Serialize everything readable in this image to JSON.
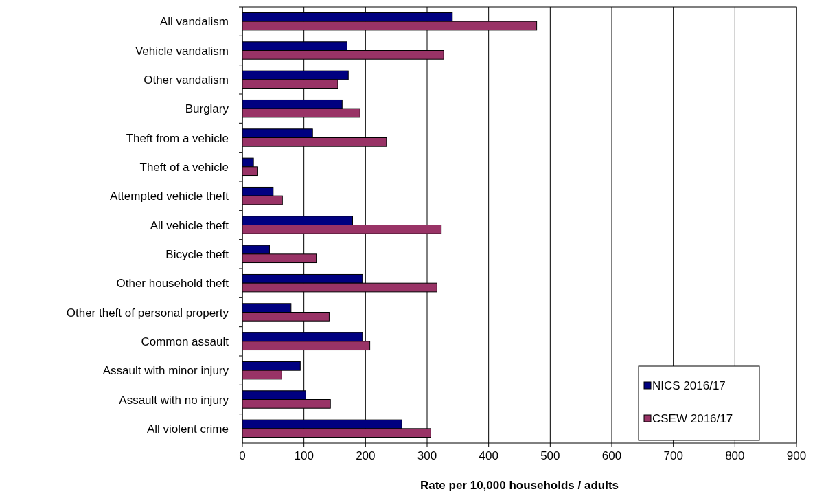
{
  "chart_data": {
    "type": "bar",
    "orientation": "horizontal",
    "xlabel": "Rate per 10,000 households / adults",
    "categories": [
      "All vandalism",
      "Vehicle vandalism",
      "Other vandalism",
      "Burglary",
      "Theft from a vehicle",
      "Theft of a vehicle",
      "Attempted vehicle theft",
      "All vehicle theft",
      "Bicycle theft",
      "Other household theft",
      "Other theft of personal property",
      "Common assault",
      "Assault with minor injury",
      "Assault with no injury",
      "All violent crime"
    ],
    "series": [
      {
        "name": "NICS 2016/17",
        "color": "#000080",
        "values": [
          341,
          170,
          172,
          162,
          114,
          18,
          50,
          179,
          44,
          195,
          79,
          195,
          94,
          103,
          259
        ]
      },
      {
        "name": "CSEW 2016/17",
        "color": "#993366",
        "values": [
          478,
          327,
          155,
          191,
          234,
          25,
          65,
          323,
          120,
          316,
          141,
          207,
          64,
          143,
          306
        ]
      }
    ],
    "xlim": [
      0,
      900
    ],
    "xticks": [
      0,
      100,
      200,
      300,
      400,
      500,
      600,
      700,
      800,
      900
    ],
    "grid": "x",
    "legend": "bottom right"
  }
}
